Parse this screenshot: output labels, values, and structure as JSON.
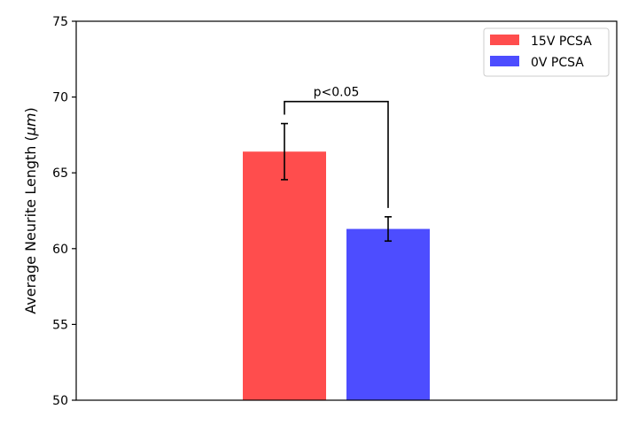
{
  "chart_data": {
    "type": "bar",
    "title": "",
    "xlabel": "",
    "ylabel": "Average Neurite Length (",
    "ylabel_unit": "μm",
    "ylabel_close": ")",
    "ylim": [
      50,
      75
    ],
    "yticks": [
      50,
      55,
      60,
      65,
      70,
      75
    ],
    "grid": false,
    "legend_position": "top-right",
    "series": [
      {
        "name": "15V PCSA",
        "value": 66.4,
        "error": 1.85,
        "color": "#ff4d4d"
      },
      {
        "name": "0V PCSA",
        "value": 61.3,
        "error": 0.8,
        "color": "#4d4dff"
      }
    ],
    "annotation": {
      "text": "p<0.05",
      "bracket_y": 69.7
    }
  }
}
